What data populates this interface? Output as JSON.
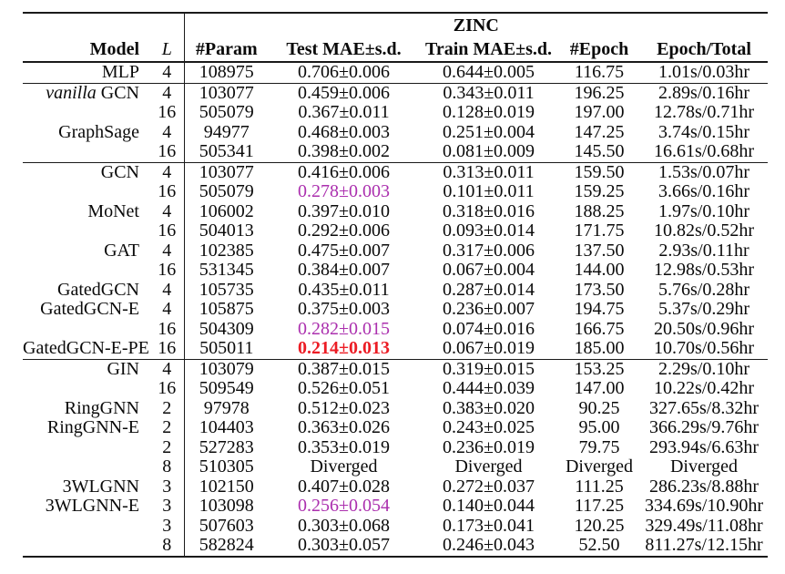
{
  "table": {
    "group_header": "ZINC",
    "columns": {
      "model": "Model",
      "layers": "L",
      "param": "#Param",
      "test": "Test MAE±s.d.",
      "train": "Train MAE±s.d.",
      "epoch": "#Epoch",
      "time": "Epoch/Total"
    },
    "colors": {
      "highlight_purple": "#AB2FAE",
      "highlight_red": "#EC1C24",
      "rule": "#1a1a1a"
    },
    "rows": [
      {
        "section": 1,
        "model_italic": "",
        "model": "MLP",
        "layers": "4",
        "param": "108975",
        "test": "0.706±0.006",
        "train": "0.644±0.005",
        "epoch": "116.75",
        "time": "1.01s/0.03hr",
        "highlight": ""
      },
      {
        "section": 2,
        "model_italic": "vanilla",
        "model": " GCN",
        "layers": "4",
        "param": "103077",
        "test": "0.459±0.006",
        "train": "0.343±0.011",
        "epoch": "196.25",
        "time": "2.89s/0.16hr",
        "highlight": ""
      },
      {
        "section": 2,
        "model_italic": "",
        "model": "",
        "layers": "16",
        "param": "505079",
        "test": "0.367±0.011",
        "train": "0.128±0.019",
        "epoch": "197.00",
        "time": "12.78s/0.71hr",
        "highlight": ""
      },
      {
        "section": 2,
        "model_italic": "",
        "model": "GraphSage",
        "layers": "4",
        "param": "94977",
        "test": "0.468±0.003",
        "train": "0.251±0.004",
        "epoch": "147.25",
        "time": "3.74s/0.15hr",
        "highlight": ""
      },
      {
        "section": 2,
        "model_italic": "",
        "model": "",
        "layers": "16",
        "param": "505341",
        "test": "0.398±0.002",
        "train": "0.081±0.009",
        "epoch": "145.50",
        "time": "16.61s/0.68hr",
        "highlight": ""
      },
      {
        "section": 3,
        "model_italic": "",
        "model": "GCN",
        "layers": "4",
        "param": "103077",
        "test": "0.416±0.006",
        "train": "0.313±0.011",
        "epoch": "159.50",
        "time": "1.53s/0.07hr",
        "highlight": ""
      },
      {
        "section": 3,
        "model_italic": "",
        "model": "",
        "layers": "16",
        "param": "505079",
        "test": "0.278±0.003",
        "train": "0.101±0.011",
        "epoch": "159.25",
        "time": "3.66s/0.16hr",
        "highlight": "purple"
      },
      {
        "section": 3,
        "model_italic": "",
        "model": "MoNet",
        "layers": "4",
        "param": "106002",
        "test": "0.397±0.010",
        "train": "0.318±0.016",
        "epoch": "188.25",
        "time": "1.97s/0.10hr",
        "highlight": ""
      },
      {
        "section": 3,
        "model_italic": "",
        "model": "",
        "layers": "16",
        "param": "504013",
        "test": "0.292±0.006",
        "train": "0.093±0.014",
        "epoch": "171.75",
        "time": "10.82s/0.52hr",
        "highlight": ""
      },
      {
        "section": 3,
        "model_italic": "",
        "model": "GAT",
        "layers": "4",
        "param": "102385",
        "test": "0.475±0.007",
        "train": "0.317±0.006",
        "epoch": "137.50",
        "time": "2.93s/0.11hr",
        "highlight": ""
      },
      {
        "section": 3,
        "model_italic": "",
        "model": "",
        "layers": "16",
        "param": "531345",
        "test": "0.384±0.007",
        "train": "0.067±0.004",
        "epoch": "144.00",
        "time": "12.98s/0.53hr",
        "highlight": ""
      },
      {
        "section": 3,
        "model_italic": "",
        "model": "GatedGCN",
        "layers": "4",
        "param": "105735",
        "test": "0.435±0.011",
        "train": "0.287±0.014",
        "epoch": "173.50",
        "time": "5.76s/0.28hr",
        "highlight": ""
      },
      {
        "section": 3,
        "model_italic": "",
        "model": "GatedGCN-E",
        "layers": "4",
        "param": "105875",
        "test": "0.375±0.003",
        "train": "0.236±0.007",
        "epoch": "194.75",
        "time": "5.37s/0.29hr",
        "highlight": ""
      },
      {
        "section": 3,
        "model_italic": "",
        "model": "",
        "layers": "16",
        "param": "504309",
        "test": "0.282±0.015",
        "train": "0.074±0.016",
        "epoch": "166.75",
        "time": "20.50s/0.96hr",
        "highlight": "purple"
      },
      {
        "section": 3,
        "model_italic": "",
        "model": "GatedGCN-E-PE",
        "layers": "16",
        "param": "505011",
        "test": "0.214±0.013",
        "train": "0.067±0.019",
        "epoch": "185.00",
        "time": "10.70s/0.56hr",
        "highlight": "red"
      },
      {
        "section": 4,
        "model_italic": "",
        "model": "GIN",
        "layers": "4",
        "param": "103079",
        "test": "0.387±0.015",
        "train": "0.319±0.015",
        "epoch": "153.25",
        "time": "2.29s/0.10hr",
        "highlight": ""
      },
      {
        "section": 4,
        "model_italic": "",
        "model": "",
        "layers": "16",
        "param": "509549",
        "test": "0.526±0.051",
        "train": "0.444±0.039",
        "epoch": "147.00",
        "time": "10.22s/0.42hr",
        "highlight": ""
      },
      {
        "section": 4,
        "model_italic": "",
        "model": "RingGNN",
        "layers": "2",
        "param": "97978",
        "test": "0.512±0.023",
        "train": "0.383±0.020",
        "epoch": "90.25",
        "time": "327.65s/8.32hr",
        "highlight": ""
      },
      {
        "section": 4,
        "model_italic": "",
        "model": "RingGNN-E",
        "layers": "2",
        "param": "104403",
        "test": "0.363±0.026",
        "train": "0.243±0.025",
        "epoch": "95.00",
        "time": "366.29s/9.76hr",
        "highlight": ""
      },
      {
        "section": 4,
        "model_italic": "",
        "model": "",
        "layers": "2",
        "param": "527283",
        "test": "0.353±0.019",
        "train": "0.236±0.019",
        "epoch": "79.75",
        "time": "293.94s/6.63hr",
        "highlight": ""
      },
      {
        "section": 4,
        "model_italic": "",
        "model": "",
        "layers": "8",
        "param": "510305",
        "test": "Diverged",
        "train": "Diverged",
        "epoch": "Diverged",
        "time": "Diverged",
        "highlight": ""
      },
      {
        "section": 4,
        "model_italic": "",
        "model": "3WLGNN",
        "layers": "3",
        "param": "102150",
        "test": "0.407±0.028",
        "train": "0.272±0.037",
        "epoch": "111.25",
        "time": "286.23s/8.88hr",
        "highlight": ""
      },
      {
        "section": 4,
        "model_italic": "",
        "model": "3WLGNN-E",
        "layers": "3",
        "param": "103098",
        "test": "0.256±0.054",
        "train": "0.140±0.044",
        "epoch": "117.25",
        "time": "334.69s/10.90hr",
        "highlight": "purple"
      },
      {
        "section": 4,
        "model_italic": "",
        "model": "",
        "layers": "3",
        "param": "507603",
        "test": "0.303±0.068",
        "train": "0.173±0.041",
        "epoch": "120.25",
        "time": "329.49s/11.08hr",
        "highlight": ""
      },
      {
        "section": 4,
        "model_italic": "",
        "model": "",
        "layers": "8",
        "param": "582824",
        "test": "0.303±0.057",
        "train": "0.246±0.043",
        "epoch": "52.50",
        "time": "811.27s/12.15hr",
        "highlight": ""
      }
    ]
  }
}
